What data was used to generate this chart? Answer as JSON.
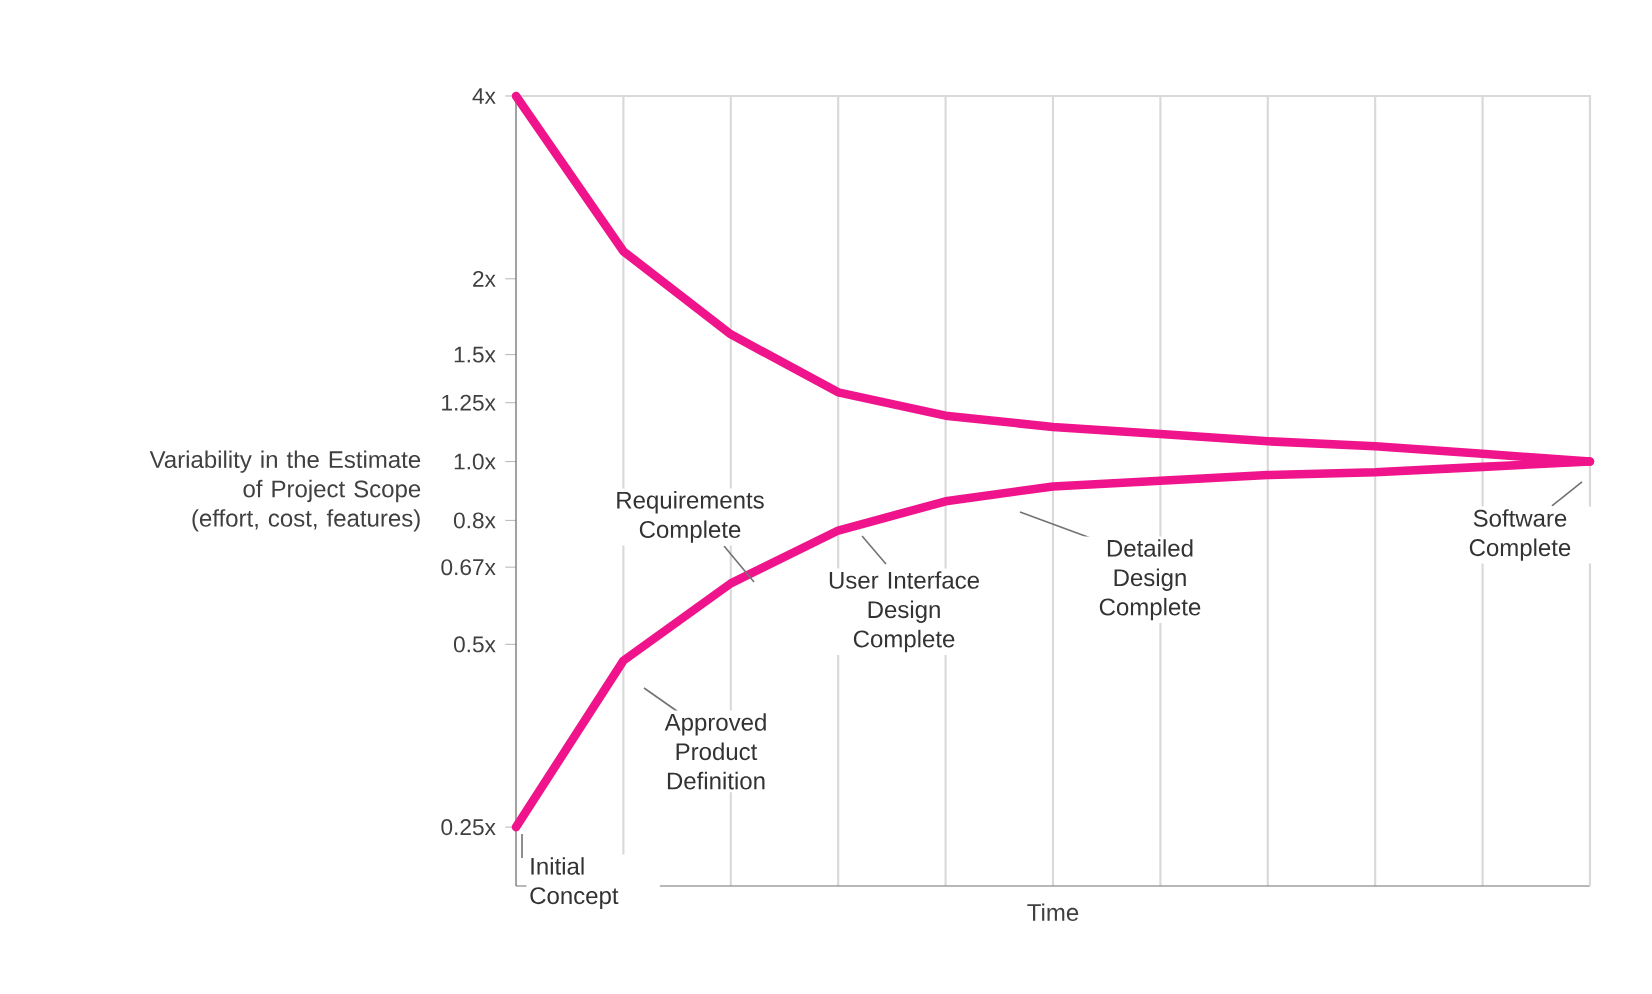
{
  "chart_data": {
    "type": "line",
    "xlabel": "Time",
    "ylabel": "Variability in the Estimate of Project Scope (effort, cost, features)",
    "log": "y",
    "grid": "x",
    "tick_labels": "y",
    "marker": "none",
    "line_style": "solid",
    "categories": [
      null,
      null,
      null,
      null,
      null,
      null,
      null,
      null,
      null,
      null,
      null
    ],
    "ylim": [
      0.2,
      4
    ],
    "yticks": [
      {
        "value": 4,
        "label": "4x"
      },
      {
        "value": 2,
        "label": "2x"
      },
      {
        "value": 1.5,
        "label": "1.5x"
      },
      {
        "value": 1.25,
        "label": "1.25x"
      },
      {
        "value": 1.0,
        "label": "1.0x"
      },
      {
        "value": 0.8,
        "label": "0.8x"
      },
      {
        "value": 0.67,
        "label": "0.67x"
      },
      {
        "value": 0.5,
        "label": "0.5x"
      },
      {
        "value": 0.25,
        "label": "0.25x"
      }
    ],
    "series": [
      {
        "color": "#f0148c",
        "values": [
          4,
          2.22,
          1.62,
          1.3,
          1.19,
          1.14,
          1.11,
          1.08,
          1.06,
          1.03,
          1.0
        ]
      },
      {
        "color": "#f0148c",
        "values": [
          0.25,
          0.47,
          0.63,
          0.77,
          0.86,
          0.91,
          0.93,
          0.95,
          0.96,
          0.98,
          1.0
        ]
      }
    ],
    "annotations": [
      "Initial Concept",
      "Approved Product Definition",
      "Requirements Complete",
      "User Interface Design Complete",
      "Detailed Design Complete",
      "Software Complete"
    ]
  }
}
